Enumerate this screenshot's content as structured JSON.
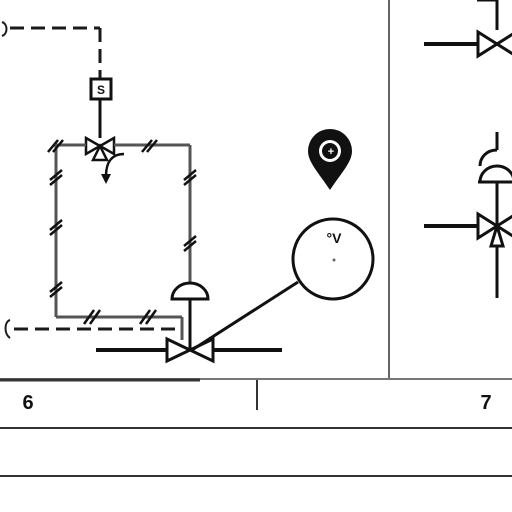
{
  "diagram": {
    "solenoid_label": "S",
    "gauge_label": "°V",
    "pin_label": "+"
  },
  "footer": {
    "col_left_number": "6",
    "col_right_number": "7"
  },
  "colors": {
    "line": "#1a1a1a",
    "pipe": "#555555",
    "divider": "#666666",
    "accent": "#222222"
  }
}
